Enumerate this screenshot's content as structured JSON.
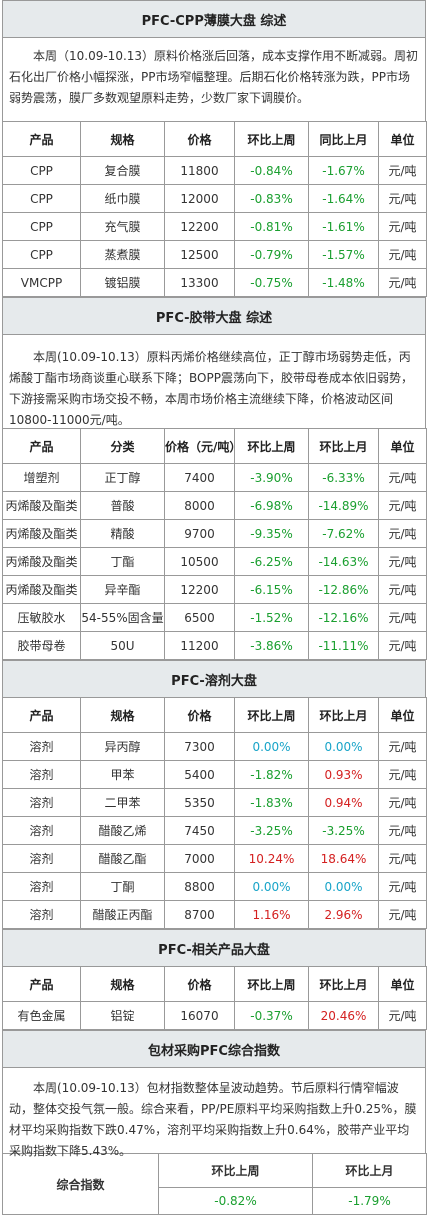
{
  "cpp": {
    "title": "PFC-CPP薄膜大盘 综述",
    "summary": "本周（10.09-10.13）原料价格涨后回落，成本支撑作用不断减弱。周初石化出厂价格小幅探涨，PP市场窄幅整理。后期石化价格转涨为跌，PP市场弱势震荡，膜厂多数观望原料走势，少数厂家下调膜价。",
    "headers": [
      "产品",
      "规格",
      "价格",
      "环比上周",
      "同比上月",
      "单位"
    ],
    "rows": [
      [
        "CPP",
        "复合膜",
        "11800",
        "-0.84%",
        "-1.67%",
        "元/吨"
      ],
      [
        "CPP",
        "纸巾膜",
        "12000",
        "-0.83%",
        "-1.64%",
        "元/吨"
      ],
      [
        "CPP",
        "充气膜",
        "12200",
        "-0.81%",
        "-1.61%",
        "元/吨"
      ],
      [
        "CPP",
        "蒸煮膜",
        "12500",
        "-0.79%",
        "-1.57%",
        "元/吨"
      ],
      [
        "VMCPP",
        "镀铝膜",
        "13300",
        "-0.75%",
        "-1.48%",
        "元/吨"
      ]
    ],
    "colors": [
      [
        "g",
        "g"
      ],
      [
        "g",
        "g"
      ],
      [
        "g",
        "g"
      ],
      [
        "g",
        "g"
      ],
      [
        "g",
        "g"
      ]
    ]
  },
  "tape": {
    "title": "PFC-胶带大盘 综述",
    "summary": "本周(10.09-10.13）原料丙烯价格继续高位，正丁醇市场弱势走低，丙烯酸丁酯市场商谈重心联系下降；BOPP震荡向下，胶带母卷成本依旧弱势，下游接需采购市场交投不畅，本周市场价格主流继续下降，价格波动区间10800-11000元/吨。",
    "headers": [
      "产品",
      "分类",
      "价格（元/吨）",
      "环比上周",
      "环比上月",
      "单位"
    ],
    "rows": [
      [
        "增塑剂",
        "正丁醇",
        "7400",
        "-3.90%",
        "-6.33%",
        "元/吨"
      ],
      [
        "丙烯酸及酯类",
        "普酸",
        "8000",
        "-6.98%",
        "-14.89%",
        "元/吨"
      ],
      [
        "丙烯酸及酯类",
        "精酸",
        "9700",
        "-9.35%",
        "-7.62%",
        "元/吨"
      ],
      [
        "丙烯酸及酯类",
        "丁酯",
        "10500",
        "-6.25%",
        "-14.63%",
        "元/吨"
      ],
      [
        "丙烯酸及酯类",
        "异辛酯",
        "12200",
        "-6.15%",
        "-12.86%",
        "元/吨"
      ],
      [
        "压敏胶水",
        "54-55%固含量",
        "6500",
        "-1.52%",
        "-12.16%",
        "元/吨"
      ],
      [
        "胶带母卷",
        "50U",
        "11200",
        "-3.86%",
        "-11.11%",
        "元/吨"
      ]
    ],
    "colors": [
      [
        "g",
        "g"
      ],
      [
        "g",
        "g"
      ],
      [
        "g",
        "g"
      ],
      [
        "g",
        "g"
      ],
      [
        "g",
        "g"
      ],
      [
        "g",
        "g"
      ],
      [
        "g",
        "g"
      ]
    ]
  },
  "solvent": {
    "title": "PFC-溶剂大盘",
    "headers": [
      "产品",
      "规格",
      "价格",
      "环比上周",
      "环比上月",
      "单位"
    ],
    "rows": [
      [
        "溶剂",
        "异丙醇",
        "7300",
        "0.00%",
        "0.00%",
        "元/吨"
      ],
      [
        "溶剂",
        "甲苯",
        "5400",
        "-1.82%",
        "0.93%",
        "元/吨"
      ],
      [
        "溶剂",
        "二甲苯",
        "5350",
        "-1.83%",
        "0.94%",
        "元/吨"
      ],
      [
        "溶剂",
        "醋酸乙烯",
        "7450",
        "-3.25%",
        "-3.25%",
        "元/吨"
      ],
      [
        "溶剂",
        "醋酸乙酯",
        "7000",
        "10.24%",
        "18.64%",
        "元/吨"
      ],
      [
        "溶剂",
        "丁酮",
        "8800",
        "0.00%",
        "0.00%",
        "元/吨"
      ],
      [
        "溶剂",
        "醋酸正丙酯",
        "8700",
        "1.16%",
        "2.96%",
        "元/吨"
      ]
    ],
    "colors": [
      [
        "c",
        "c"
      ],
      [
        "g",
        "r"
      ],
      [
        "g",
        "r"
      ],
      [
        "g",
        "g"
      ],
      [
        "r",
        "r"
      ],
      [
        "c",
        "c"
      ],
      [
        "r",
        "r"
      ]
    ]
  },
  "related": {
    "title": "PFC-相关产品大盘",
    "headers": [
      "产品",
      "规格",
      "价格",
      "环比上周",
      "环比上月",
      "单位"
    ],
    "rows": [
      [
        "有色金属",
        "铝锭",
        "16070",
        "-0.37%",
        "20.46%",
        "元/吨"
      ]
    ],
    "colors": [
      [
        "g",
        "r"
      ]
    ]
  },
  "index": {
    "title": "包材采购PFC综合指数",
    "summary": "本周(10.09-10.13）包材指数整体呈波动趋势。节后原料行情窄幅波动，整体交投气氛一般。综合来看，PP/PE原料平均采购指数上升0.25%，膜材平均采购指数下跌0.47%，溶剂平均采购指数上升0.64%，胶带产业平均采购指数下降5.43%。",
    "label": "综合指数",
    "h1": "环比上周",
    "h2": "环比上月",
    "v1": "-0.82%",
    "v2": "-1.79%"
  },
  "palette": {
    "green": "#1a9f2f",
    "red": "#d42020",
    "cyan": "#18a4c8",
    "header_bg": "#e6eaec",
    "border": "#999999"
  }
}
